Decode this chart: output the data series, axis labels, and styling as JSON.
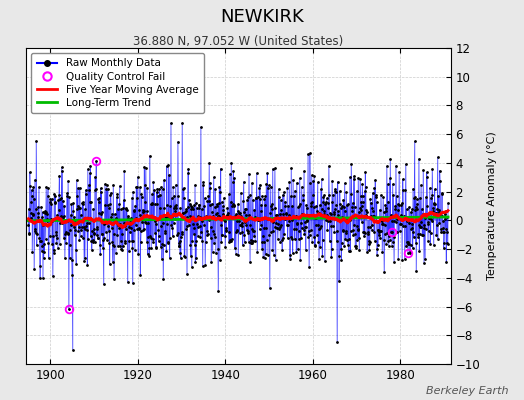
{
  "title": "NEWKIRK",
  "subtitle": "36.880 N, 97.052 W (United States)",
  "ylabel": "Temperature Anomaly (°C)",
  "attribution": "Berkeley Earth",
  "year_start": 1895,
  "year_end": 1990,
  "ylim": [
    -10,
    12
  ],
  "yticks": [
    -10,
    -8,
    -6,
    -4,
    -2,
    0,
    2,
    4,
    6,
    8,
    10,
    12
  ],
  "xticks": [
    1900,
    1920,
    1940,
    1960,
    1980
  ],
  "bg_color": "#e8e8e8",
  "plot_bg_color": "#ffffff",
  "raw_color": "#0000ff",
  "trend_color": "#00bb00",
  "moving_avg_color": "#ff0000",
  "qc_color": "#ff00ff",
  "seed": 12345
}
